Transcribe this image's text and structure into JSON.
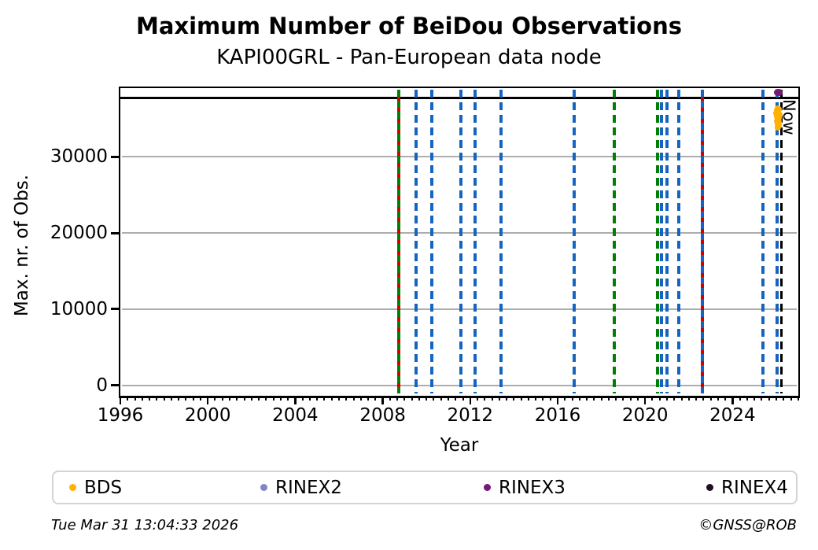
{
  "footer": {
    "timestamp": "Tue Mar 31 13:04:33 2026",
    "credit": "©GNSS@ROB"
  },
  "legend": {
    "items": [
      {
        "label": "BDS",
        "color": "#FFB000"
      },
      {
        "label": "RINEX2",
        "color": "#8583C4"
      },
      {
        "label": "RINEX3",
        "color": "#751975"
      },
      {
        "label": "RINEX4",
        "color": "#230D23"
      }
    ]
  },
  "chart_data": {
    "type": "scatter",
    "title": "Maximum Number of BeiDou Observations",
    "subtitle": "KAPI00GRL - Pan-European data node",
    "xlabel": "Year",
    "ylabel": "Max. nr. of Obs.",
    "xlim": [
      1996,
      2027
    ],
    "ylim": [
      -1300,
      39000
    ],
    "xticks": [
      1996,
      2000,
      2004,
      2008,
      2012,
      2016,
      2020,
      2024
    ],
    "yticks": [
      0,
      10000,
      20000,
      30000
    ],
    "x_minor_step_years": 0.3333,
    "grid": "horizontal-gray",
    "legend_position": "bottom",
    "max_line": {
      "value": 37700,
      "color": "#000000",
      "style": "solid"
    },
    "now_line": {
      "year": 2026.25,
      "label": "Now",
      "color": "#000000",
      "style": "dashed"
    },
    "event_lines": [
      {
        "year": 2008.74,
        "colors": [
          "#008000",
          "#d40000"
        ],
        "style": "dashed"
      },
      {
        "year": 2009.53,
        "colors": [
          "#1565c0"
        ],
        "style": "dashed"
      },
      {
        "year": 2010.24,
        "colors": [
          "#1565c0"
        ],
        "style": "dashed"
      },
      {
        "year": 2011.58,
        "colors": [
          "#1565c0"
        ],
        "style": "dashed"
      },
      {
        "year": 2012.22,
        "colors": [
          "#1565c0"
        ],
        "style": "dashed"
      },
      {
        "year": 2013.41,
        "colors": [
          "#1565c0"
        ],
        "style": "dashed"
      },
      {
        "year": 2016.76,
        "colors": [
          "#1565c0"
        ],
        "style": "dashed"
      },
      {
        "year": 2018.59,
        "colors": [
          "#008000"
        ],
        "style": "dashed"
      },
      {
        "year": 2020.57,
        "colors": [
          "#008000"
        ],
        "style": "dashed"
      },
      {
        "year": 2020.75,
        "colors": [
          "#1565c0"
        ],
        "style": "dashed"
      },
      {
        "year": 2021.0,
        "colors": [
          "#1565c0"
        ],
        "style": "dashed"
      },
      {
        "year": 2021.54,
        "colors": [
          "#1565c0"
        ],
        "style": "dashed"
      },
      {
        "year": 2022.62,
        "colors": [
          "#1565c0",
          "#d40000"
        ],
        "style": "dashed"
      },
      {
        "year": 2025.39,
        "colors": [
          "#1565c0"
        ],
        "style": "dashed"
      },
      {
        "year": 2026.05,
        "colors": [
          "#1565c0"
        ],
        "style": "dashed"
      }
    ],
    "series": [
      {
        "name": "BDS",
        "color": "#FFB000",
        "marker_px": 8,
        "points": [
          [
            2026.02,
            36150
          ],
          [
            2026.07,
            36300
          ],
          [
            2026.12,
            36200
          ],
          [
            2026.0,
            35700
          ],
          [
            2026.05,
            35750
          ],
          [
            2026.1,
            35650
          ],
          [
            2026.14,
            35550
          ],
          [
            2026.02,
            35250
          ],
          [
            2026.07,
            35150
          ],
          [
            2026.12,
            35050
          ],
          [
            2026.04,
            34700
          ],
          [
            2026.09,
            34600
          ],
          [
            2026.06,
            34250
          ],
          [
            2026.1,
            34150
          ],
          [
            2026.08,
            33900
          ]
        ]
      },
      {
        "name": "RINEX2",
        "color": "#8583C4",
        "marker_px": 8,
        "points": []
      },
      {
        "name": "RINEX3",
        "color": "#751975",
        "marker_px": 9,
        "points": [
          [
            2026.05,
            38480
          ],
          [
            2026.12,
            38480
          ]
        ]
      },
      {
        "name": "RINEX4",
        "color": "#230D23",
        "marker_px": 8,
        "points": []
      }
    ]
  }
}
